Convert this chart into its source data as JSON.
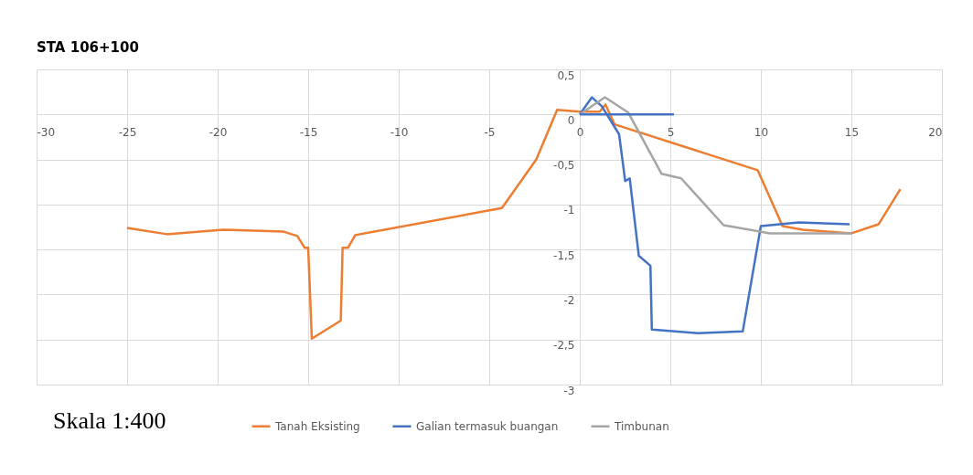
{
  "chart_data": {
    "type": "line",
    "title": "STA 106+100",
    "annotations": [
      "Skala 1:400"
    ],
    "xlim": [
      -30,
      20
    ],
    "xticks": [
      -30,
      -25,
      -20,
      -15,
      -10,
      -5,
      0,
      5,
      10,
      15,
      20
    ],
    "ylim": [
      -3,
      0.5
    ],
    "yticks": [
      {
        "value": 0.5,
        "label": "0,5"
      },
      0,
      {
        "value": -0.5,
        "label": "-0,5"
      },
      -1,
      {
        "value": -1.5,
        "label": "-1,5"
      },
      -2,
      {
        "value": -2.5,
        "label": "-2,5"
      },
      -3
    ],
    "grid": true,
    "legend": "bottom",
    "marker": "none",
    "line_style": "solid",
    "series": [
      {
        "name": "Tanah Eksisting",
        "color": "#ed7d31",
        "x": [
          -25.0,
          -22.8,
          -19.7,
          -16.4,
          -15.6,
          -15.2,
          -15.0,
          -14.8,
          -13.2,
          -13.1,
          -12.8,
          -12.4,
          -4.3,
          -2.4,
          -1.25,
          0,
          1.1,
          1.42,
          1.92,
          9.83,
          11.2,
          12.3,
          15.0,
          16.5,
          17.7
        ],
        "values": [
          -1.26,
          -1.33,
          -1.28,
          -1.3,
          -1.35,
          -1.48,
          -1.48,
          -2.49,
          -2.29,
          -1.48,
          -1.48,
          -1.34,
          -1.04,
          -0.5,
          0.05,
          0.03,
          0.03,
          0.11,
          -0.11,
          -0.62,
          -1.24,
          -1.28,
          -1.32,
          -1.22,
          -0.83
        ]
      },
      {
        "name": "Galian termasuk buangan",
        "color": "#4472c4",
        "x": [
          0,
          0.67,
          1.22,
          2.17,
          2.51,
          2.76,
          3.26,
          3.9,
          3.98,
          6.52,
          9.0,
          10.0,
          12.1,
          14.9
        ],
        "values": [
          0,
          0.19,
          0.09,
          -0.22,
          -0.74,
          -0.71,
          -1.57,
          -1.68,
          -2.39,
          -2.43,
          -2.41,
          -1.24,
          -1.2,
          -1.22
        ]
      },
      {
        "name": "Timbunan",
        "color": "#a5a5a5",
        "x": [
          0,
          1.39,
          2.68,
          4.52,
          5.6,
          7.94,
          10.5,
          15.0
        ],
        "values": [
          0,
          0.19,
          0.02,
          -0.66,
          -0.71,
          -1.23,
          -1.32,
          -1.32
        ]
      },
      {
        "color": "#4472c4",
        "x": [
          0,
          5.2
        ],
        "values": [
          0,
          0
        ]
      }
    ]
  }
}
